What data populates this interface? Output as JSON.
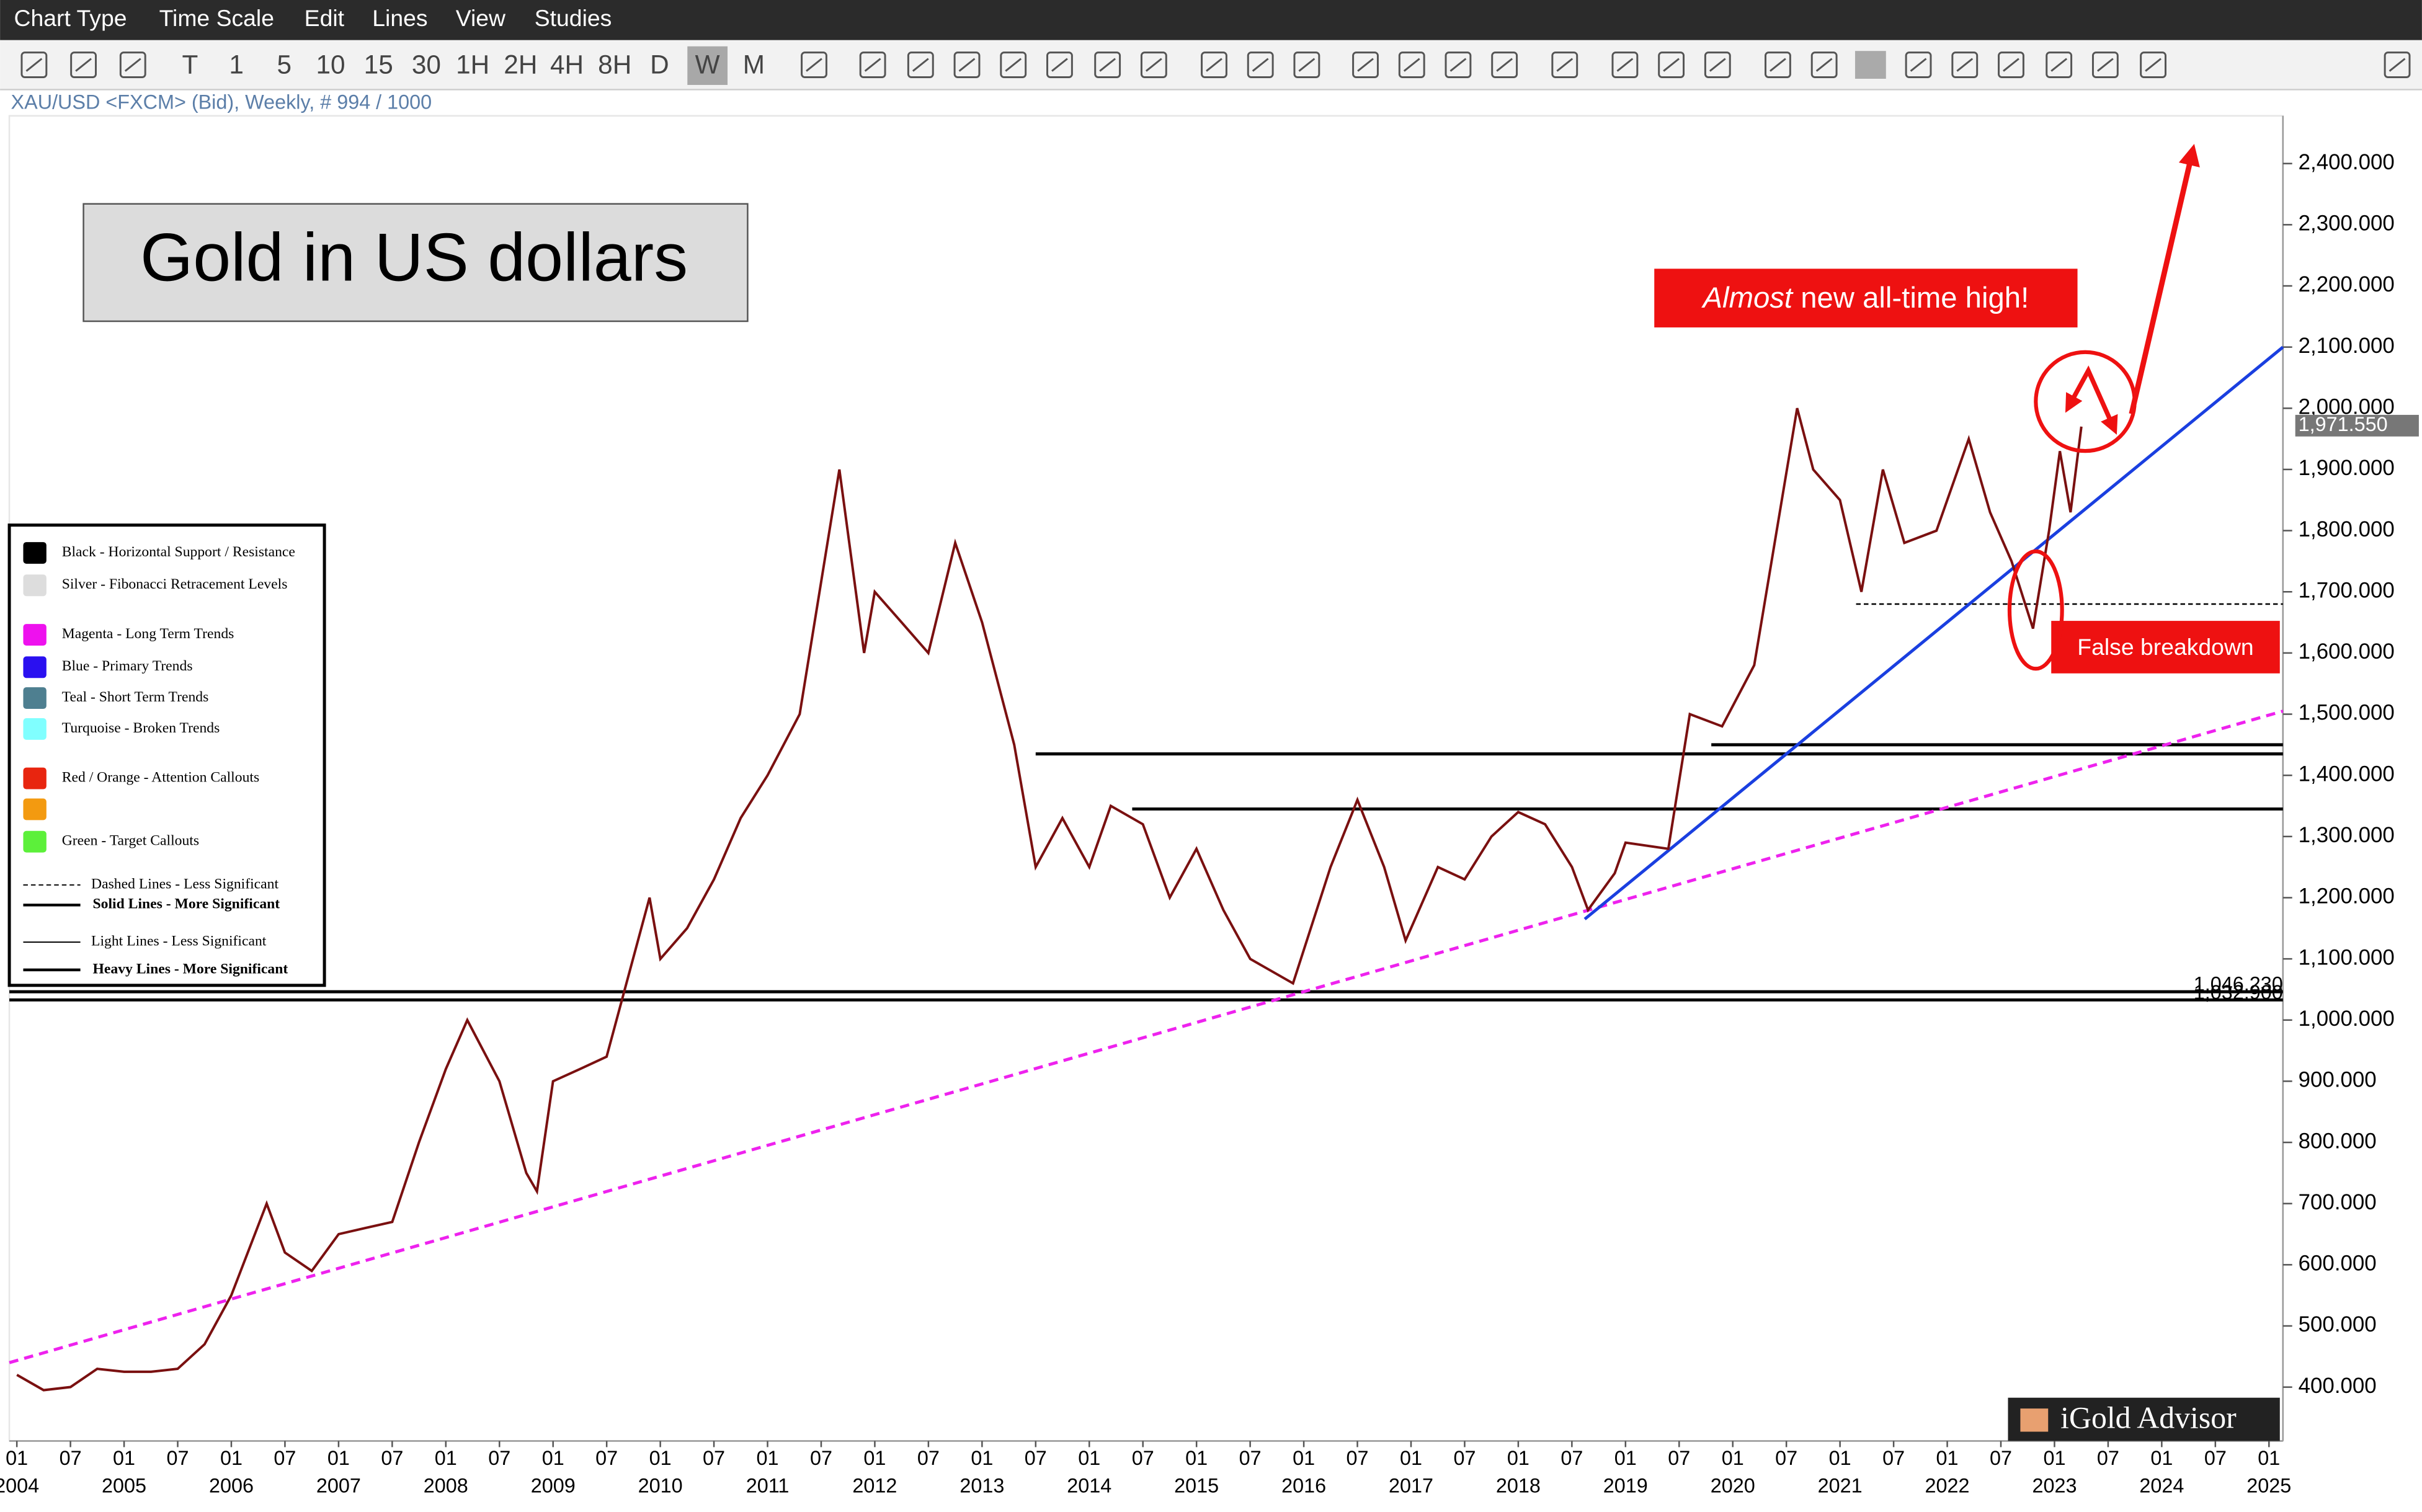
{
  "menu": [
    "Chart Type",
    "Time Scale",
    "Edit",
    "Lines",
    "View",
    "Studies"
  ],
  "toolbar": [
    "T",
    "1",
    "5",
    "10",
    "15",
    "30",
    "1H",
    "2H",
    "4H",
    "8H",
    "D",
    "W",
    "M"
  ],
  "symbol_info": "XAU/USD <FXCM> (Bid), Weekly, # 994 / 1000",
  "logo": "iGold Advisor",
  "chart_data": {
    "type": "line",
    "title": "Gold in US dollars",
    "color": "#7a1010",
    "x": [
      2004.0,
      2004.25,
      2004.5,
      2004.75,
      2005.0,
      2005.25,
      2005.5,
      2005.75,
      2006.0,
      2006.33,
      2006.5,
      2006.75,
      2007.0,
      2007.25,
      2007.5,
      2007.75,
      2008.0,
      2008.2,
      2008.5,
      2008.75,
      2008.85,
      2009.0,
      2009.25,
      2009.5,
      2009.9,
      2010.0,
      2010.25,
      2010.5,
      2010.75,
      2011.0,
      2011.3,
      2011.67,
      2011.9,
      2012.0,
      2012.25,
      2012.5,
      2012.75,
      2013.0,
      2013.3,
      2013.5,
      2013.75,
      2014.0,
      2014.2,
      2014.5,
      2014.75,
      2015.0,
      2015.25,
      2015.5,
      2015.9,
      2016.25,
      2016.5,
      2016.75,
      2016.95,
      2017.25,
      2017.5,
      2017.75,
      2018.0,
      2018.25,
      2018.5,
      2018.65,
      2018.9,
      2019.0,
      2019.4,
      2019.6,
      2019.9,
      2020.2,
      2020.6,
      2020.75,
      2021.0,
      2021.2,
      2021.4,
      2021.6,
      2021.9,
      2022.2,
      2022.4,
      2022.6,
      2022.8,
      2022.95,
      2023.05,
      2023.15,
      2023.25
    ],
    "values": [
      420,
      395,
      400,
      430,
      425,
      425,
      430,
      470,
      550,
      700,
      620,
      590,
      650,
      660,
      670,
      800,
      920,
      1000,
      900,
      750,
      720,
      900,
      920,
      940,
      1200,
      1100,
      1150,
      1230,
      1330,
      1400,
      1500,
      1900,
      1600,
      1700,
      1650,
      1600,
      1780,
      1650,
      1450,
      1250,
      1330,
      1250,
      1350,
      1320,
      1200,
      1280,
      1180,
      1100,
      1060,
      1250,
      1360,
      1250,
      1130,
      1250,
      1230,
      1300,
      1340,
      1320,
      1250,
      1180,
      1240,
      1290,
      1280,
      1500,
      1480,
      1580,
      2000,
      1900,
      1850,
      1700,
      1900,
      1780,
      1800,
      1950,
      1830,
      1750,
      1640,
      1800,
      1930,
      1830,
      1970
    ],
    "xlim": [
      2003.93,
      2025.13
    ],
    "ylim": [
      312,
      2478
    ],
    "xticks": [
      {
        "value": 2004,
        "label": "01",
        "year_label": "2004"
      },
      {
        "value": 2004.5,
        "label": "07"
      },
      {
        "value": 2005,
        "label": "01",
        "year_label": "2005"
      },
      {
        "value": 2005.5,
        "label": "07"
      },
      {
        "value": 2006,
        "label": "01",
        "year_label": "2006"
      },
      {
        "value": 2006.5,
        "label": "07"
      },
      {
        "value": 2007,
        "label": "01",
        "year_label": "2007"
      },
      {
        "value": 2007.5,
        "label": "07"
      },
      {
        "value": 2008,
        "label": "01",
        "year_label": "2008"
      },
      {
        "value": 2008.5,
        "label": "07"
      },
      {
        "value": 2009,
        "label": "01",
        "year_label": "2009"
      },
      {
        "value": 2009.5,
        "label": "07"
      },
      {
        "value": 2010,
        "label": "01",
        "year_label": "2010"
      },
      {
        "value": 2010.5,
        "label": "07"
      },
      {
        "value": 2011,
        "label": "01",
        "year_label": "2011"
      },
      {
        "value": 2011.5,
        "label": "07"
      },
      {
        "value": 2012,
        "label": "01",
        "year_label": "2012"
      },
      {
        "value": 2012.5,
        "label": "07"
      },
      {
        "value": 2013,
        "label": "01",
        "year_label": "2013"
      },
      {
        "value": 2013.5,
        "label": "07"
      },
      {
        "value": 2014,
        "label": "01",
        "year_label": "2014"
      },
      {
        "value": 2014.5,
        "label": "07"
      },
      {
        "value": 2015,
        "label": "01",
        "year_label": "2015"
      },
      {
        "value": 2015.5,
        "label": "07"
      },
      {
        "value": 2016,
        "label": "01",
        "year_label": "2016"
      },
      {
        "value": 2016.5,
        "label": "07"
      },
      {
        "value": 2017,
        "label": "01",
        "year_label": "2017"
      },
      {
        "value": 2017.5,
        "label": "07"
      },
      {
        "value": 2018,
        "label": "01",
        "year_label": "2018"
      },
      {
        "value": 2018.5,
        "label": "07"
      },
      {
        "value": 2019,
        "label": "01",
        "year_label": "2019"
      },
      {
        "value": 2019.5,
        "label": "07"
      },
      {
        "value": 2020,
        "label": "01",
        "year_label": "2020"
      },
      {
        "value": 2020.5,
        "label": "07"
      },
      {
        "value": 2021,
        "label": "01",
        "year_label": "2021"
      },
      {
        "value": 2021.5,
        "label": "07"
      },
      {
        "value": 2022,
        "label": "01",
        "year_label": "2022"
      },
      {
        "value": 2022.5,
        "label": "07"
      },
      {
        "value": 2023,
        "label": "01",
        "year_label": "2023"
      },
      {
        "value": 2023.5,
        "label": "07"
      },
      {
        "value": 2024,
        "label": "01",
        "year_label": "2024"
      },
      {
        "value": 2024.5,
        "label": "07"
      },
      {
        "value": 2025,
        "label": "01",
        "year_label": "2025"
      }
    ],
    "yticks": [
      {
        "value": 400,
        "label": "400.000"
      },
      {
        "value": 500,
        "label": "500.000"
      },
      {
        "value": 600,
        "label": "600.000"
      },
      {
        "value": 700,
        "label": "700.000"
      },
      {
        "value": 800,
        "label": "800.000"
      },
      {
        "value": 900,
        "label": "900.000"
      },
      {
        "value": 1000,
        "label": "1,000.000"
      },
      {
        "value": 1100,
        "label": "1,100.000"
      },
      {
        "value": 1200,
        "label": "1,200.000"
      },
      {
        "value": 1300,
        "label": "1,300.000"
      },
      {
        "value": 1400,
        "label": "1,400.000"
      },
      {
        "value": 1500,
        "label": "1,500.000"
      },
      {
        "value": 1600,
        "label": "1,600.000"
      },
      {
        "value": 1700,
        "label": "1,700.000"
      },
      {
        "value": 1800,
        "label": "1,800.000"
      },
      {
        "value": 1900,
        "label": "1,900.000"
      },
      {
        "value": 2000,
        "label": "2,000.000"
      },
      {
        "value": 2100,
        "label": "2,100.000"
      },
      {
        "value": 2200,
        "label": "2,200.000"
      },
      {
        "value": 2300,
        "label": "2,300.000"
      },
      {
        "value": 2400,
        "label": "2,400.000"
      }
    ],
    "last_price": {
      "value": 1971.55,
      "label": "1,971.550"
    },
    "hlines": [
      {
        "value": 1046.23,
        "label": "1,046.230",
        "x_start": 2003.93
      },
      {
        "value": 1032.9,
        "label": "1,032.900",
        "x_start": 2003.93
      },
      {
        "value": 1450,
        "x_start": 2019.8
      },
      {
        "value": 1435,
        "x_start": 2013.5
      },
      {
        "value": 1345,
        "x_start": 2014.4
      }
    ],
    "dashed_hlines": [
      {
        "value": 1680,
        "x_start": 2021.15
      }
    ],
    "trend_lines": [
      {
        "color": "#ee22ee",
        "dashed": true,
        "x": [
          2003.93,
          2025.13
        ],
        "values": [
          440,
          1505
        ]
      },
      {
        "color": "#1a3fe0",
        "dashed": false,
        "x": [
          2018.62,
          2025.13
        ],
        "values": [
          1165,
          2100
        ]
      }
    ],
    "annotations": {
      "high_italic": "Almost",
      "high_text": " new all-time high!",
      "breakdown": "False breakdown"
    },
    "legend": [
      {
        "color": "#000000",
        "label": "Black - Horizontal Support / Resistance"
      },
      {
        "color": "#dddddd",
        "label": "Silver - Fibonacci Retracement Levels"
      },
      {
        "color": "#ee11ee",
        "label": "Magenta - Long Term Trends"
      },
      {
        "color": "#2a10f0",
        "label": "Blue - Primary Trends"
      },
      {
        "color": "#4e7f90",
        "label": "Teal - Short Term Trends"
      },
      {
        "color": "#80ffff",
        "label": "Turquoise - Broken Trends"
      },
      {
        "color": "#e8250f",
        "label": "Red / Orange - Attention Callouts"
      },
      {
        "color": "#f39a10"
      },
      {
        "color": "#5cf03a",
        "label": "Green - Target Callouts"
      }
    ],
    "line_styles": [
      {
        "label": "Dashed Lines - Less Significant",
        "dashed": true
      },
      {
        "label": "Solid Lines - More Significant",
        "bold": true
      },
      {
        "label": "Light Lines - Less Significant"
      },
      {
        "label": "Heavy Lines - More Significant",
        "bold": true
      }
    ]
  }
}
